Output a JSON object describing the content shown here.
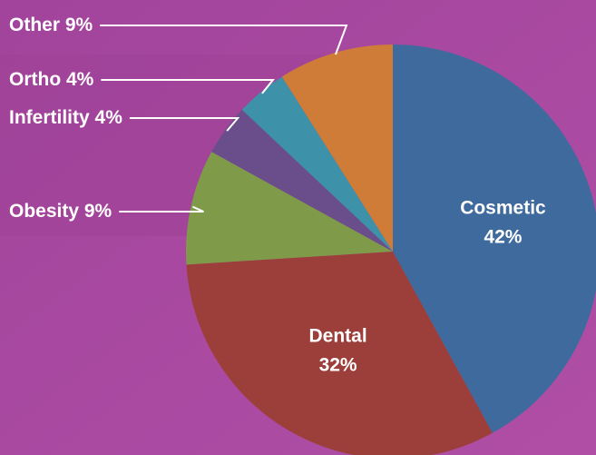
{
  "chart_data": {
    "type": "pie",
    "categories": [
      "Cosmetic",
      "Dental",
      "Obesity",
      "Infertility",
      "Ortho",
      "Other"
    ],
    "values": [
      42,
      32,
      9,
      4,
      4,
      9
    ],
    "value_labels": [
      "42%",
      "32%",
      "9%",
      "4%",
      "4%",
      "9%"
    ],
    "colors": [
      "#3f6a9d",
      "#9c3f3b",
      "#7f9b49",
      "#6a4e8b",
      "#3d91a9",
      "#cf7c38"
    ]
  }
}
